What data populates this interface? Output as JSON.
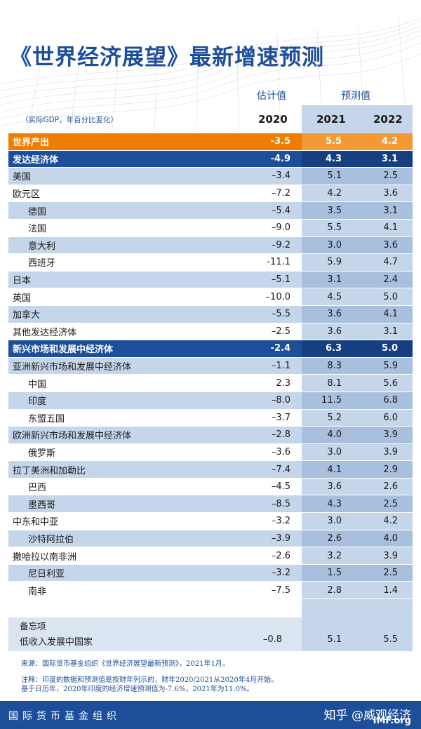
{
  "title": "《世界经济展望》最新增速预测",
  "units": "（实际GDP，年百分比变化）",
  "columns": {
    "estimate_label": "估计值",
    "forecast_label": "预测值",
    "years": [
      "2020",
      "2021",
      "2022"
    ]
  },
  "rows": [
    {
      "name": "世界产出",
      "v": [
        "-3.5",
        "5.5",
        "4.2"
      ],
      "style": "orange"
    },
    {
      "name": "发达经济体",
      "v": [
        "-4.9",
        "4.3",
        "3.1"
      ],
      "style": "navy"
    },
    {
      "name": "美国",
      "v": [
        "–3.4",
        "5.1",
        "2.5"
      ],
      "style": "alt"
    },
    {
      "name": "欧元区",
      "v": [
        "–7.2",
        "4.2",
        "3.6"
      ],
      "style": "plain"
    },
    {
      "name": "德国",
      "v": [
        "–5.4",
        "3.5",
        "3.1"
      ],
      "style": "alt",
      "indent": true
    },
    {
      "name": "法国",
      "v": [
        "–9.0",
        "5.5",
        "4.1"
      ],
      "style": "plain",
      "indent": true
    },
    {
      "name": "意大利",
      "v": [
        "–9.2",
        "3.0",
        "3.6"
      ],
      "style": "alt",
      "indent": true
    },
    {
      "name": "西班牙",
      "v": [
        "-11.1",
        "5.9",
        "4.7"
      ],
      "style": "plain",
      "indent": true
    },
    {
      "name": "日本",
      "v": [
        "–5.1",
        "3.1",
        "2.4"
      ],
      "style": "alt"
    },
    {
      "name": "英国",
      "v": [
        "–10.0",
        "4.5",
        "5.0"
      ],
      "style": "plain"
    },
    {
      "name": "加拿大",
      "v": [
        "–5.5",
        "3.6",
        "4.1"
      ],
      "style": "alt"
    },
    {
      "name": "其他发达经济体",
      "v": [
        "–2.5",
        "3.6",
        "3.1"
      ],
      "style": "plain"
    },
    {
      "name": "新兴市场和发展中经济体",
      "v": [
        "-2.4",
        "6.3",
        "5.0"
      ],
      "style": "navy"
    },
    {
      "name": "亚洲新兴市场和发展中经济体",
      "v": [
        "–1.1",
        "8.3",
        "5.9"
      ],
      "style": "alt"
    },
    {
      "name": "中国",
      "v": [
        "2.3",
        "8.1",
        "5.6"
      ],
      "style": "plain",
      "indent": true
    },
    {
      "name": "印度",
      "v": [
        "–8.0",
        "11.5",
        "6.8"
      ],
      "style": "alt",
      "indent": true
    },
    {
      "name": "东盟五国",
      "v": [
        "–3.7",
        "5.2",
        "6.0"
      ],
      "style": "plain",
      "indent": true
    },
    {
      "name": "欧洲新兴市场和发展中经济体",
      "v": [
        "–2.8",
        "4.0",
        "3.9"
      ],
      "style": "alt"
    },
    {
      "name": "俄罗斯",
      "v": [
        "–3.6",
        "3.0",
        "3.9"
      ],
      "style": "plain",
      "indent": true
    },
    {
      "name": "拉丁美洲和加勒比",
      "v": [
        "–7.4",
        "4.1",
        "2.9"
      ],
      "style": "alt"
    },
    {
      "name": "巴西",
      "v": [
        "–4.5",
        "3.6",
        "2.6"
      ],
      "style": "plain",
      "indent": true
    },
    {
      "name": "墨西哥",
      "v": [
        "–8.5",
        "4.3",
        "2.5"
      ],
      "style": "alt",
      "indent": true
    },
    {
      "name": "中东和中亚",
      "v": [
        "–3.2",
        "3.0",
        "4.2"
      ],
      "style": "plain"
    },
    {
      "name": "沙特阿拉伯",
      "v": [
        "–3.9",
        "2.6",
        "4.0"
      ],
      "style": "alt",
      "indent": true
    },
    {
      "name": "撒哈拉以南非洲",
      "v": [
        "–2.6",
        "3.2",
        "3.9"
      ],
      "style": "plain"
    },
    {
      "name": "尼日利亚",
      "v": [
        "–3.2",
        "1.5",
        "2.5"
      ],
      "style": "alt",
      "indent": true
    },
    {
      "name": "南非",
      "v": [
        "–7.5",
        "2.8",
        "1.4"
      ],
      "style": "plain",
      "indent": true
    }
  ],
  "memo": {
    "label": "备忘项",
    "name": "低收入发展中国家",
    "v": [
      "–0.8",
      "5.1",
      "5.5"
    ]
  },
  "source": "来源：国际货币基金组织《世界经济展望最新预测》，2021年1月。",
  "note_lines": [
    "注释：印度的数据和预测值是按财年列示的，财年2020/2021从2020年4月开始。",
    "基于日历年，2020年印度的经济增速预测值为-7.6%，2021年为11.0%。"
  ],
  "footer": {
    "org": "国际货币基金组织",
    "watermark": "知乎 @威观经济",
    "logo": "IMF.org"
  },
  "colors": {
    "navy": "#1d4e9a",
    "orange": "#ef7d00",
    "light_blue": "#c5d6ea"
  }
}
